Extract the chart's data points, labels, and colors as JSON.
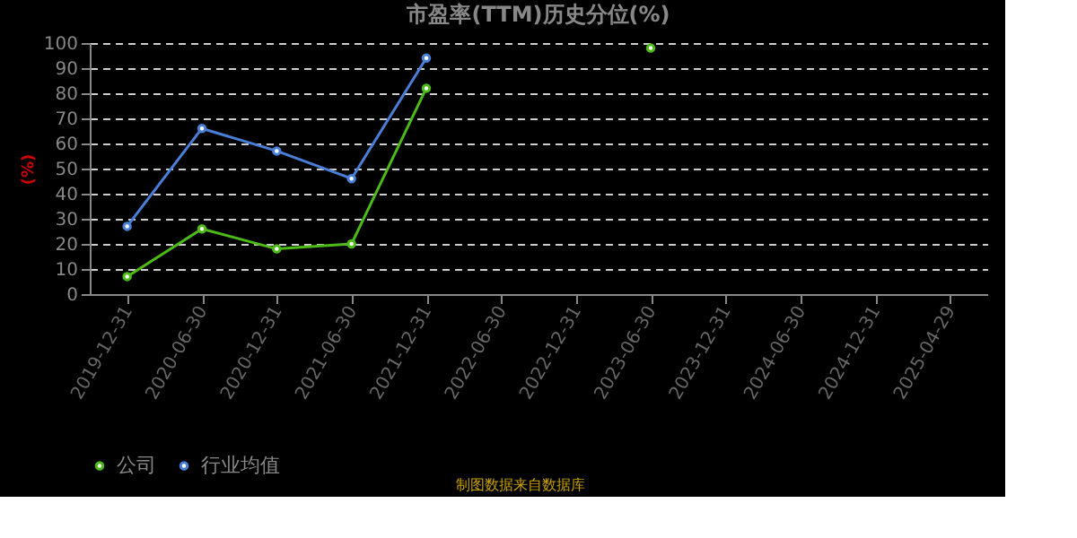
{
  "chart_data": {
    "type": "line",
    "title": "市盈率(TTM)历史分位(%)",
    "ylabel": "(%)",
    "categories": [
      "2019-12-31",
      "2020-06-30",
      "2020-12-31",
      "2021-06-30",
      "2021-12-31",
      "2022-06-30",
      "2022-12-31",
      "2023-06-30",
      "2023-12-31",
      "2024-06-30",
      "2024-12-31",
      "2025-04-29"
    ],
    "series": [
      {
        "name": "公司",
        "color": "#4cbb17",
        "values": [
          7,
          26,
          18,
          20,
          82,
          null,
          null,
          98,
          null,
          null,
          null,
          null
        ]
      },
      {
        "name": "行业均值",
        "color": "#4a7fd8",
        "values": [
          27,
          66,
          57,
          46,
          94,
          null,
          null,
          null,
          null,
          null,
          null,
          null
        ]
      }
    ],
    "ylim": [
      0,
      100
    ],
    "yticks": [
      0,
      10,
      20,
      30,
      40,
      50,
      60,
      70,
      80,
      90,
      100
    ],
    "grid": "y",
    "legend": "bottom",
    "marker": "circle",
    "line_style": "solid",
    "annotations": [
      "制图数据来自数据库"
    ]
  }
}
